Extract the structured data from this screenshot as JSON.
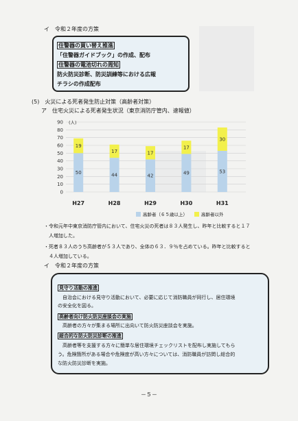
{
  "section_a": {
    "heading": "イ　令和２年度の方策",
    "box_lines": [
      {
        "text": "住警器の買い替え推進",
        "tagged": true
      },
      {
        "text": "「住警器ガイドブック」の作成、配布",
        "tagged": false
      },
      {
        "text": "住警器の電池切れの周知",
        "tagged": true
      },
      {
        "text": "防火防災診断、防災訓練等における広報",
        "tagged": false
      },
      {
        "text": "チラシの作成配布",
        "tagged": false
      }
    ]
  },
  "section_5": {
    "heading": "(5)　火災による死者発生防止対策（高齢者対策）",
    "sub_heading": "ア　住宅火災による死者発生状況（東京消防庁管内、速報値）"
  },
  "chart_data": {
    "type": "bar",
    "stacked": true,
    "categories": [
      "H27",
      "H28",
      "H29",
      "H30",
      "H31"
    ],
    "series": [
      {
        "name": "高齢者（６５歳以上）",
        "values": [
          50,
          44,
          42,
          49,
          53
        ],
        "color": "#b9d3ea"
      },
      {
        "name": "高齢者以外",
        "values": [
          19,
          17,
          17,
          17,
          30
        ],
        "color": "#f2f04c"
      }
    ],
    "ylim": [
      0,
      90
    ],
    "yticks": [
      0,
      10,
      20,
      30,
      40,
      50,
      60,
      70,
      80,
      90
    ],
    "y_unit": "(人)",
    "legend_position": "bottom-right",
    "grid": true
  },
  "bullets": [
    "・令和元年中東京消防庁管内において、住宅火災の死者は８３人発生し、昨年と比較すると１７",
    "　人増加した。",
    "・死者８３人のうち高齢者が５３人であり、全体の６３．９％を占めている。昨年と比較すると",
    "　４人増加している。"
  ],
  "section_b": {
    "heading": "イ　令和２年度の方策",
    "items": [
      {
        "title": "見守り活動の推進",
        "body": [
          "　自治会における見守り活動において、必要に応じて消防職員が同行し、居住環境",
          "の安全化を図る。"
        ]
      },
      {
        "title": "高齢者向け防火防災座談会の実施",
        "body": [
          "　高齢者の方々が集まる場所に出向いて防火防災座談会を実施。"
        ]
      },
      {
        "title": "総合的な防火防災診断の推進",
        "body": [
          "　高齢者等を支援する方々に簡単な居住環境チェックリストを配布し実施してもら",
          "う。危険箇所がある場合や危険度が高い方々については、消防職員が訪問し総合的",
          "な防火防災診断を実施。"
        ]
      }
    ]
  },
  "footer": {
    "page_number": "－５－"
  }
}
